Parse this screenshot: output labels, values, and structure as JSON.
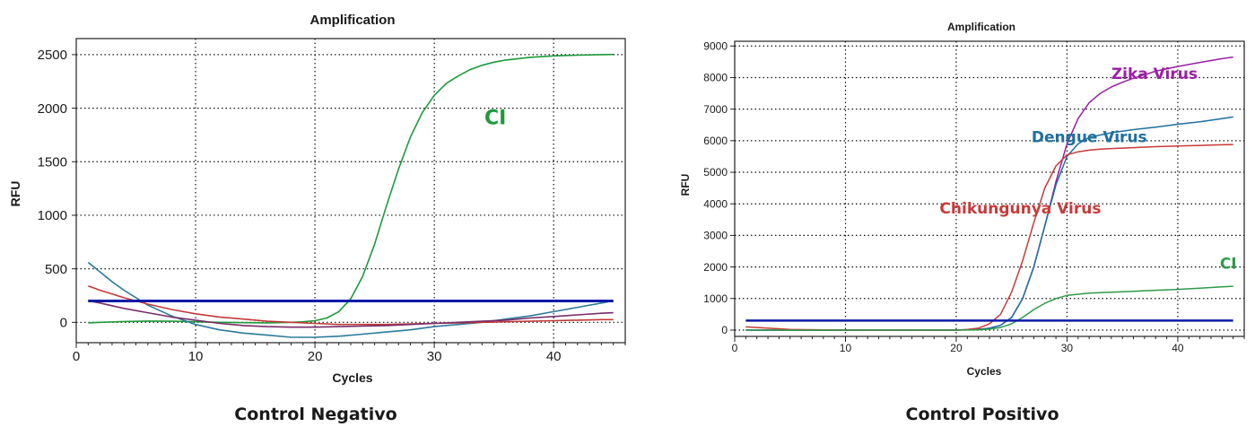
{
  "captions": {
    "left": "Control Negativo",
    "right": "Control Positivo"
  },
  "chart_data": [
    {
      "type": "line",
      "title": "Amplification",
      "xlabel": "Cycles",
      "ylabel": "RFU",
      "xlim": [
        0,
        46
      ],
      "ylim": [
        -190,
        2650
      ],
      "xticks": [
        0,
        10,
        20,
        30,
        40
      ],
      "yticks": [
        0,
        500,
        1000,
        1500,
        2000,
        2500
      ],
      "grid": true,
      "threshold": {
        "value": 200,
        "x_range": [
          1,
          45
        ],
        "color": "#0a1aa8"
      },
      "series": [
        {
          "name": "CI",
          "color": "#1e9a3c",
          "x": [
            1,
            2,
            4,
            6,
            8,
            10,
            12,
            14,
            16,
            18,
            19,
            20,
            21,
            22,
            23,
            24,
            25,
            26,
            27,
            28,
            29,
            30,
            31,
            32,
            33,
            34,
            35,
            36,
            38,
            40,
            42,
            44,
            45
          ],
          "y": [
            -5,
            0,
            8,
            12,
            10,
            5,
            0,
            -3,
            -5,
            0,
            5,
            15,
            40,
            100,
            220,
            430,
            730,
            1090,
            1430,
            1730,
            1960,
            2120,
            2230,
            2300,
            2360,
            2400,
            2430,
            2450,
            2475,
            2488,
            2495,
            2500,
            2502
          ]
        },
        {
          "color": "#2a7a9a",
          "x": [
            1,
            2,
            3,
            4,
            6,
            8,
            10,
            12,
            14,
            16,
            18,
            20,
            22,
            24,
            26,
            28,
            30,
            32,
            34,
            36,
            38,
            40,
            42,
            44,
            45
          ],
          "y": [
            560,
            470,
            380,
            300,
            160,
            60,
            -20,
            -70,
            -100,
            -120,
            -140,
            -140,
            -130,
            -110,
            -90,
            -70,
            -40,
            -20,
            0,
            30,
            60,
            100,
            140,
            180,
            200
          ]
        },
        {
          "color": "#c23a3a",
          "x": [
            1,
            2,
            4,
            6,
            8,
            10,
            12,
            14,
            16,
            18,
            20,
            22,
            24,
            26,
            28,
            30,
            32,
            34,
            36,
            38,
            40,
            42,
            44,
            45
          ],
          "y": [
            340,
            300,
            230,
            170,
            120,
            80,
            50,
            30,
            10,
            0,
            -10,
            -20,
            -20,
            -20,
            -15,
            -10,
            -5,
            0,
            5,
            10,
            15,
            20,
            25,
            25
          ]
        },
        {
          "color": "#7a2c6a",
          "x": [
            1,
            2,
            4,
            6,
            8,
            10,
            12,
            14,
            16,
            18,
            20,
            22,
            24,
            26,
            28,
            30,
            32,
            34,
            36,
            38,
            40,
            42,
            44,
            45
          ],
          "y": [
            200,
            180,
            130,
            90,
            50,
            20,
            -10,
            -30,
            -40,
            -45,
            -45,
            -40,
            -35,
            -30,
            -20,
            -10,
            0,
            10,
            20,
            40,
            55,
            70,
            85,
            90
          ]
        }
      ],
      "annotations": [
        {
          "text": "CI",
          "x": 34.2,
          "y": 1850,
          "color": "#1e9a3c",
          "size": 22
        }
      ]
    },
    {
      "type": "line",
      "title": "Amplification",
      "xlabel": "Cycles",
      "ylabel": "RFU",
      "xlim": [
        0,
        46
      ],
      "ylim": [
        -200,
        9150
      ],
      "xticks": [
        0,
        10,
        20,
        30,
        40
      ],
      "yticks": [
        0,
        1000,
        2000,
        3000,
        4000,
        5000,
        6000,
        7000,
        8000,
        9000
      ],
      "grid": true,
      "threshold": {
        "value": 300,
        "x_range": [
          1,
          45
        ],
        "color": "#0a1aa8"
      },
      "series": [
        {
          "name": "Zika Virus",
          "color": "#9b1fa6",
          "x": [
            1,
            5,
            10,
            15,
            20,
            22,
            23,
            24,
            25,
            26,
            27,
            28,
            29,
            30,
            31,
            32,
            33,
            34,
            35,
            36,
            38,
            40,
            42,
            44,
            45
          ],
          "y": [
            0,
            0,
            0,
            0,
            0,
            20,
            60,
            150,
            400,
            1000,
            2000,
            3300,
            4700,
            5900,
            6700,
            7200,
            7500,
            7700,
            7850,
            7980,
            8200,
            8350,
            8480,
            8600,
            8650
          ]
        },
        {
          "name": "Dengue Virus",
          "color": "#1f6fa0",
          "x": [
            1,
            5,
            10,
            15,
            20,
            22,
            23,
            24,
            25,
            26,
            27,
            28,
            29,
            30,
            31,
            32,
            33,
            34,
            35,
            36,
            38,
            40,
            42,
            44,
            45
          ],
          "y": [
            0,
            0,
            0,
            0,
            0,
            20,
            60,
            150,
            400,
            1000,
            2000,
            3300,
            4600,
            5500,
            5900,
            6100,
            6180,
            6250,
            6300,
            6350,
            6430,
            6520,
            6600,
            6700,
            6750
          ]
        },
        {
          "name": "Chikungunya Virus",
          "color": "#c93a3a",
          "x": [
            1,
            5,
            10,
            15,
            20,
            21,
            22,
            23,
            24,
            25,
            26,
            27,
            28,
            29,
            30,
            31,
            32,
            33,
            34,
            36,
            38,
            40,
            42,
            44,
            45
          ],
          "y": [
            100,
            20,
            0,
            0,
            0,
            20,
            60,
            200,
            500,
            1200,
            2200,
            3400,
            4500,
            5200,
            5550,
            5650,
            5700,
            5730,
            5750,
            5780,
            5810,
            5830,
            5850,
            5870,
            5880
          ]
        },
        {
          "name": "CI",
          "color": "#2e9a48",
          "x": [
            1,
            5,
            10,
            15,
            20,
            22,
            23,
            24,
            25,
            26,
            27,
            28,
            29,
            30,
            32,
            34,
            36,
            38,
            40,
            42,
            44,
            45
          ],
          "y": [
            0,
            0,
            0,
            0,
            0,
            10,
            30,
            80,
            200,
            400,
            650,
            850,
            1000,
            1100,
            1170,
            1200,
            1230,
            1260,
            1290,
            1330,
            1370,
            1390
          ]
        }
      ],
      "annotations": [
        {
          "text": "Zika Virus",
          "x": 34.0,
          "y": 7950,
          "color": "#9b1fa6",
          "size": 17
        },
        {
          "text": "Dengue Virus",
          "x": 26.8,
          "y": 5950,
          "color": "#1f6fa0",
          "size": 17
        },
        {
          "text": "Chikungunya Virus",
          "x": 18.5,
          "y": 3700,
          "color": "#c93a3a",
          "size": 17
        },
        {
          "text": "CI",
          "x": 43.8,
          "y": 1950,
          "color": "#2e9a48",
          "size": 17
        }
      ]
    }
  ]
}
